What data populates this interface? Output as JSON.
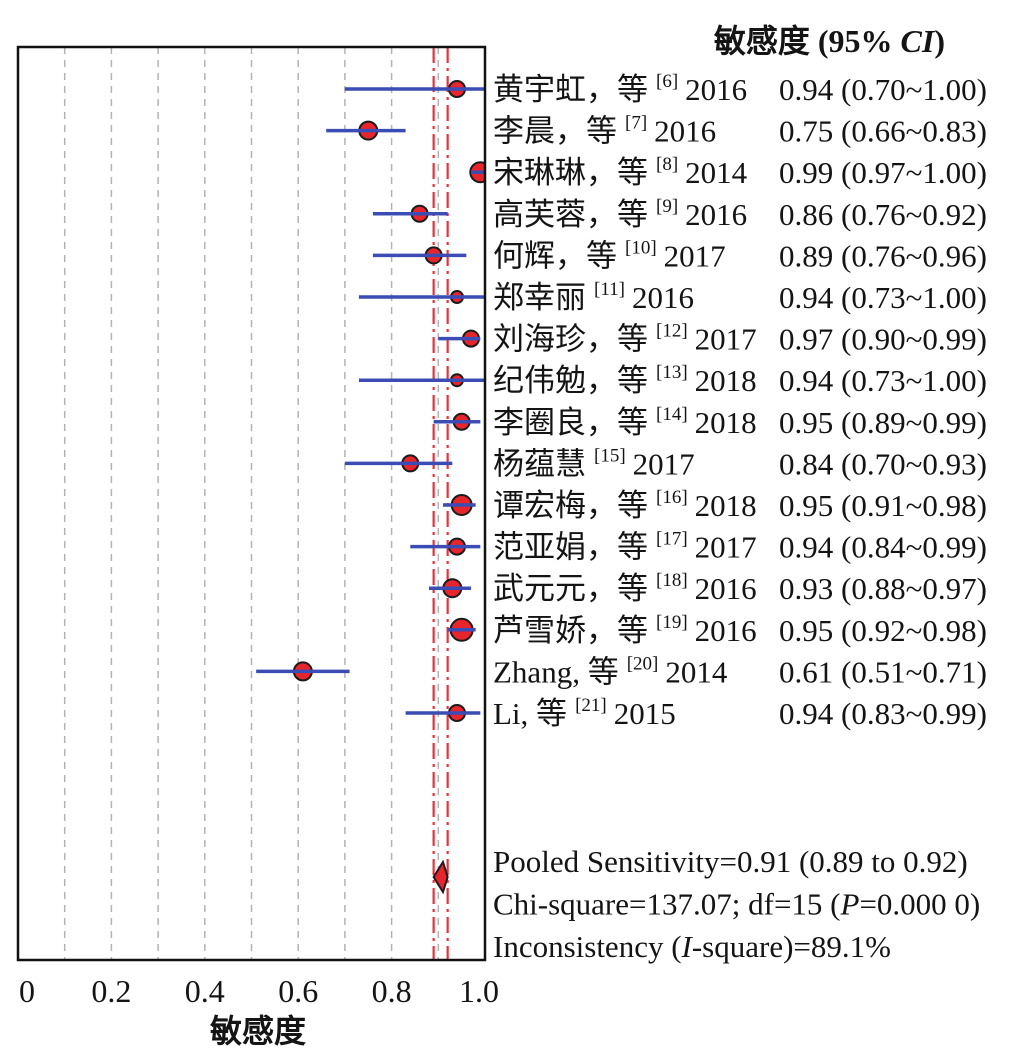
{
  "chart_data": {
    "type": "scatter",
    "error_bars": true,
    "estimate_header": {
      "main": "敏感度 (95% ",
      "italic": "CI",
      "end": ")"
    },
    "xlabel": "敏感度",
    "xlim": [
      0,
      1.0
    ],
    "x_ticks": [
      "0",
      "0.2",
      "0.4",
      "0.6",
      "0.8",
      "1.0"
    ],
    "grid": true,
    "grid_step": 0.1,
    "studies": [
      {
        "label": "黄宇虹，等",
        "ref": "[6]",
        "year": "2016",
        "estimate": 0.94,
        "ci": [
          0.7,
          1.0
        ],
        "estimate_text": "0.94 (0.70~1.00)"
      },
      {
        "label": "李晨，等",
        "ref": "[7]",
        "year": "2016",
        "estimate": 0.75,
        "ci": [
          0.66,
          0.83
        ],
        "estimate_text": "0.75 (0.66~0.83)"
      },
      {
        "label": "宋琳琳，等",
        "ref": "[8]",
        "year": "2014",
        "estimate": 0.99,
        "ci": [
          0.97,
          1.0
        ],
        "estimate_text": "0.99 (0.97~1.00)"
      },
      {
        "label": "高芙蓉，等",
        "ref": "[9]",
        "year": "2016",
        "estimate": 0.86,
        "ci": [
          0.76,
          0.92
        ],
        "estimate_text": "0.86 (0.76~0.92)"
      },
      {
        "label": "何辉，等",
        "ref": "[10]",
        "year": "2017",
        "estimate": 0.89,
        "ci": [
          0.76,
          0.96
        ],
        "estimate_text": "0.89 (0.76~0.96)"
      },
      {
        "label": "郑幸丽",
        "ref": "[11]",
        "year": "2016",
        "estimate": 0.94,
        "ci": [
          0.73,
          1.0
        ],
        "estimate_text": "0.94 (0.73~1.00)"
      },
      {
        "label": "刘海珍，等",
        "ref": "[12]",
        "year": "2017",
        "estimate": 0.97,
        "ci": [
          0.9,
          0.99
        ],
        "estimate_text": "0.97 (0.90~0.99)"
      },
      {
        "label": "纪伟勉，等",
        "ref": "[13]",
        "year": "2018",
        "estimate": 0.94,
        "ci": [
          0.73,
          1.0
        ],
        "estimate_text": "0.94 (0.73~1.00)"
      },
      {
        "label": "李圈良，等",
        "ref": "[14]",
        "year": "2018",
        "estimate": 0.95,
        "ci": [
          0.89,
          0.99
        ],
        "estimate_text": "0.95 (0.89~0.99)"
      },
      {
        "label": "杨蕴慧",
        "ref": "[15]",
        "year": "2017",
        "estimate": 0.84,
        "ci": [
          0.7,
          0.93
        ],
        "estimate_text": "0.84 (0.70~0.93)"
      },
      {
        "label": "谭宏梅，等",
        "ref": "[16]",
        "year": "2018",
        "estimate": 0.95,
        "ci": [
          0.91,
          0.98
        ],
        "estimate_text": "0.95 (0.91~0.98)"
      },
      {
        "label": "范亚娟，等",
        "ref": "[17]",
        "year": "2017",
        "estimate": 0.94,
        "ci": [
          0.84,
          0.99
        ],
        "estimate_text": "0.94 (0.84~0.99)"
      },
      {
        "label": "武元元，等",
        "ref": "[18]",
        "year": "2016",
        "estimate": 0.93,
        "ci": [
          0.88,
          0.97
        ],
        "estimate_text": "0.93 (0.88~0.97)"
      },
      {
        "label": "芦雪娇，等",
        "ref": "[19]",
        "year": "2016",
        "estimate": 0.95,
        "ci": [
          0.92,
          0.98
        ],
        "estimate_text": "0.95 (0.92~0.98)"
      },
      {
        "label": "Zhang, 等",
        "ref": "[20]",
        "year": "2014",
        "estimate": 0.61,
        "ci": [
          0.51,
          0.71
        ],
        "estimate_text": "0.61 (0.51~0.71)"
      },
      {
        "label": "Li, 等",
        "ref": "[21]",
        "year": "2015",
        "estimate": 0.94,
        "ci": [
          0.83,
          0.99
        ],
        "estimate_text": "0.94 (0.83~0.99)"
      }
    ],
    "pooled": {
      "estimate": 0.91,
      "ci": [
        0.89,
        0.92
      ]
    },
    "summary": [
      [
        {
          "text": "Pooled Sensitivity=0.91 (0.89 to 0.92)"
        }
      ],
      [
        {
          "text": "Chi-square=137.07; df=15 ("
        },
        {
          "text": "P",
          "italic": true
        },
        {
          "text": "=0.000 0)"
        }
      ],
      [
        {
          "text": "Inconsistency ("
        },
        {
          "text": "I",
          "italic": true
        },
        {
          "text": "-square)=89.1%"
        }
      ]
    ]
  },
  "colors": {
    "ci_line": "#3b4cb4",
    "marker_fill": "#e8242c",
    "marker_outline": "#1b1b1b",
    "pooled_lines": "#e5323b",
    "gridline": "#b3b3b3"
  }
}
